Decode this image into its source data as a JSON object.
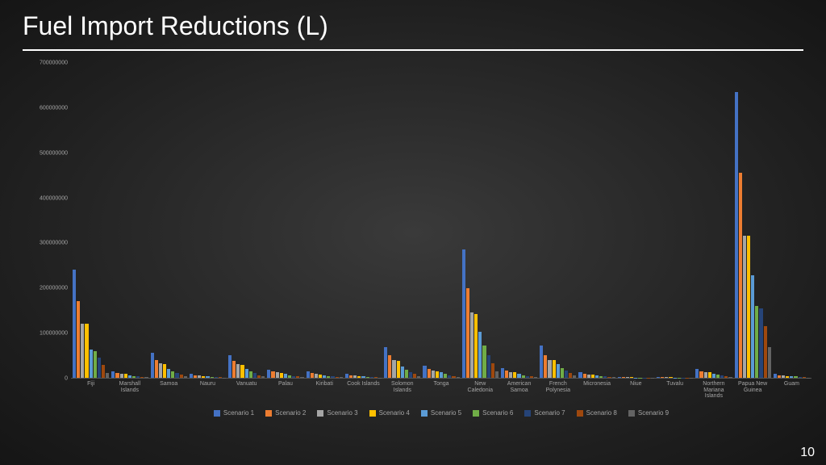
{
  "title": "Fuel Import Reductions (L)",
  "page_number": "10",
  "chart": {
    "type": "bar",
    "ylim": [
      0,
      700000000
    ],
    "ytick_step": 100000000,
    "yticks": [
      "0",
      "100000000",
      "200000000",
      "300000000",
      "400000000",
      "500000000",
      "600000000",
      "700000000"
    ],
    "series": [
      {
        "label": "Scenario 1",
        "color": "#4472c4"
      },
      {
        "label": "Scenario 2",
        "color": "#ed7d31"
      },
      {
        "label": "Scenario 3",
        "color": "#a5a5a5"
      },
      {
        "label": "Scenario 4",
        "color": "#ffc000"
      },
      {
        "label": "Scenario 5",
        "color": "#5b9bd5"
      },
      {
        "label": "Scenario 6",
        "color": "#70ad47"
      },
      {
        "label": "Scenario 7",
        "color": "#264478"
      },
      {
        "label": "Scenario 8",
        "color": "#9e480e"
      },
      {
        "label": "Scenario 9",
        "color": "#636363"
      }
    ],
    "categories": [
      {
        "label": "Fiji",
        "values": [
          240000000,
          170000000,
          120000000,
          120000000,
          62000000,
          60000000,
          45000000,
          28000000,
          10000000
        ]
      },
      {
        "label": "Marshall Islands",
        "values": [
          14000000,
          10000000,
          8000000,
          8000000,
          6000000,
          4000000,
          3000000,
          2000000,
          1000000
        ]
      },
      {
        "label": "Samoa",
        "values": [
          55000000,
          40000000,
          32000000,
          30000000,
          20000000,
          15000000,
          10000000,
          7000000,
          3000000
        ]
      },
      {
        "label": "Nauru",
        "values": [
          8000000,
          6000000,
          5000000,
          4000000,
          3000000,
          2000000,
          2000000,
          1000000,
          500000
        ]
      },
      {
        "label": "Vanuatu",
        "values": [
          50000000,
          38000000,
          30000000,
          28000000,
          20000000,
          14000000,
          10000000,
          6000000,
          3000000
        ]
      },
      {
        "label": "Palau",
        "values": [
          18000000,
          14000000,
          12000000,
          10000000,
          8000000,
          6000000,
          4000000,
          3000000,
          1000000
        ]
      },
      {
        "label": "Kiribati",
        "values": [
          14000000,
          10000000,
          8000000,
          7000000,
          6000000,
          4000000,
          3000000,
          2000000,
          1000000
        ]
      },
      {
        "label": "Cook Islands",
        "values": [
          8000000,
          6000000,
          5000000,
          4000000,
          3000000,
          2000000,
          2000000,
          1000000,
          500000
        ]
      },
      {
        "label": "Solomon Islands",
        "values": [
          68000000,
          50000000,
          40000000,
          38000000,
          25000000,
          18000000,
          12000000,
          8000000,
          4000000
        ]
      },
      {
        "label": "Tonga",
        "values": [
          26000000,
          20000000,
          16000000,
          15000000,
          12000000,
          9000000,
          6000000,
          4000000,
          2000000
        ]
      },
      {
        "label": "New Caledonia",
        "values": [
          285000000,
          200000000,
          145000000,
          142000000,
          102000000,
          72000000,
          50000000,
          32000000,
          15000000
        ]
      },
      {
        "label": "American Samoa",
        "values": [
          22000000,
          16000000,
          13000000,
          12000000,
          9000000,
          6000000,
          4000000,
          3000000,
          1000000
        ]
      },
      {
        "label": "French Polynesia",
        "values": [
          72000000,
          50000000,
          40000000,
          40000000,
          30000000,
          22000000,
          16000000,
          10000000,
          5000000
        ]
      },
      {
        "label": "Micronesia",
        "values": [
          12000000,
          9000000,
          7000000,
          7000000,
          5000000,
          4000000,
          3000000,
          2000000,
          1000000
        ]
      },
      {
        "label": "Niue",
        "values": [
          2000000,
          1500000,
          1200000,
          1000000,
          800000,
          600000,
          500000,
          300000,
          200000
        ]
      },
      {
        "label": "Tuvalu",
        "values": [
          2000000,
          1500000,
          1200000,
          1000000,
          800000,
          600000,
          500000,
          300000,
          200000
        ]
      },
      {
        "label": "Northern Mariana Islands",
        "values": [
          20000000,
          15000000,
          12000000,
          12000000,
          9000000,
          7000000,
          5000000,
          3000000,
          2000000
        ]
      },
      {
        "label": "Papua New Guinea",
        "values": [
          635000000,
          455000000,
          315000000,
          315000000,
          228000000,
          160000000,
          155000000,
          115000000,
          68000000
        ]
      },
      {
        "label": "Guam",
        "values": [
          8000000,
          6000000,
          5000000,
          4000000,
          3000000,
          3000000,
          2000000,
          1000000,
          500000
        ]
      }
    ],
    "background_color": "transparent",
    "axis_color": "#555555",
    "label_fontsize": 7,
    "tick_fontsize": 7,
    "legend_fontsize": 8
  }
}
